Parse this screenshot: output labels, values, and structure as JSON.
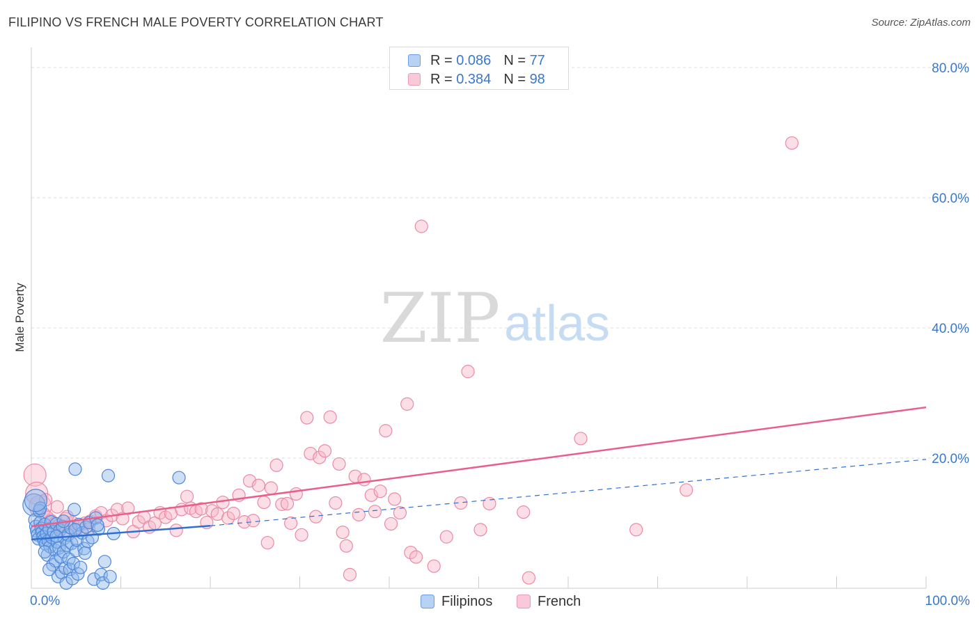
{
  "title": "FILIPINO VS FRENCH MALE POVERTY CORRELATION CHART",
  "source": "Source: ZipAtlas.com",
  "watermark": {
    "zip": "ZIP",
    "atlas": "atlas"
  },
  "legend": [
    {
      "r_label": "R =",
      "r_value": "0.086",
      "n_label": "N =",
      "n_value": "77"
    },
    {
      "r_label": "R =",
      "r_value": "0.384",
      "n_label": "N =",
      "n_value": "98"
    }
  ],
  "colors": {
    "filipinos_fill": "#8fb8ee",
    "filipinos_stroke": "#4f86d6",
    "filipinos_line": "#2f6fd0",
    "french_fill": "#f7b6c8",
    "french_stroke": "#ea8aa7",
    "french_line": "#e8608a",
    "axis_text": "#3a78c9",
    "grid": "#dddddd"
  },
  "chart_data": {
    "type": "scatter",
    "title": "FILIPINO VS FRENCH MALE POVERTY CORRELATION CHART",
    "xlabel": "",
    "ylabel": "Male Poverty",
    "xlim": [
      0,
      100
    ],
    "ylim": [
      0,
      80
    ],
    "x_tick_labels": [
      "0.0%",
      "100.0%"
    ],
    "y_ticks": [
      20,
      40,
      60,
      80
    ],
    "y_tick_labels": [
      "20.0%",
      "40.0%",
      "60.0%",
      "80.0%"
    ],
    "grid": true,
    "legend_position": "top-center",
    "series": [
      {
        "name": "Filipinos",
        "r": 0.086,
        "n": 77,
        "trend": {
          "x": [
            0,
            20
          ],
          "y": [
            7.5,
            9.6
          ],
          "dashed_to": [
            100,
            19.8
          ]
        },
        "points": [
          [
            0.3,
            12.8
          ],
          [
            0.4,
            10.5
          ],
          [
            0.5,
            9.5
          ],
          [
            0.6,
            8.8
          ],
          [
            0.7,
            8.2
          ],
          [
            0.8,
            7.6
          ],
          [
            0.9,
            11.9
          ],
          [
            1.0,
            10.1
          ],
          [
            1.1,
            9.2
          ],
          [
            1.2,
            8.6
          ],
          [
            1.3,
            7.9
          ],
          [
            1.4,
            7.4
          ],
          [
            1.5,
            9.8
          ],
          [
            1.6,
            6.8
          ],
          [
            1.7,
            8.4
          ],
          [
            1.8,
            5.1
          ],
          [
            1.9,
            7.3
          ],
          [
            2.0,
            9.1
          ],
          [
            2.1,
            6.4
          ],
          [
            2.2,
            10.2
          ],
          [
            2.3,
            7.8
          ],
          [
            2.4,
            3.6
          ],
          [
            2.5,
            8.7
          ],
          [
            2.6,
            5.9
          ],
          [
            2.7,
            4.2
          ],
          [
            2.8,
            9.9
          ],
          [
            2.9,
            7.1
          ],
          [
            3.0,
            1.8
          ],
          [
            3.1,
            6.2
          ],
          [
            3.2,
            8.9
          ],
          [
            3.3,
            4.8
          ],
          [
            3.4,
            2.4
          ],
          [
            3.5,
            9.5
          ],
          [
            3.6,
            5.6
          ],
          [
            3.7,
            7.7
          ],
          [
            3.8,
            3.1
          ],
          [
            3.9,
            0.8
          ],
          [
            4.0,
            6.6
          ],
          [
            4.1,
            8.2
          ],
          [
            4.2,
            4.5
          ],
          [
            4.3,
            2.9
          ],
          [
            4.4,
            9.3
          ],
          [
            4.5,
            6.9
          ],
          [
            4.6,
            1.5
          ],
          [
            4.7,
            3.8
          ],
          [
            4.8,
            12.1
          ],
          [
            4.9,
            18.3
          ],
          [
            5.0,
            5.8
          ],
          [
            5.1,
            7.4
          ],
          [
            5.2,
            2.2
          ],
          [
            5.3,
            9.8
          ],
          [
            5.5,
            3.2
          ],
          [
            5.7,
            8.5
          ],
          [
            5.9,
            6.1
          ],
          [
            6.1,
            9.4
          ],
          [
            6.3,
            7.2
          ],
          [
            6.5,
            10.1
          ],
          [
            7.0,
            1.4
          ],
          [
            7.2,
            10.8
          ],
          [
            7.5,
            9.1
          ],
          [
            7.8,
            2.1
          ],
          [
            8.0,
            0.8
          ],
          [
            8.2,
            4.1
          ],
          [
            8.6,
            17.3
          ],
          [
            8.8,
            1.8
          ],
          [
            9.2,
            8.4
          ],
          [
            16.5,
            17.0
          ],
          [
            2.0,
            2.9
          ],
          [
            1.5,
            5.6
          ],
          [
            6.8,
            7.8
          ],
          [
            3.6,
            10.3
          ],
          [
            1.0,
            12.3
          ],
          [
            0.5,
            13.5
          ],
          [
            2.8,
            8.0
          ],
          [
            4.9,
            9.0
          ],
          [
            6.0,
            5.4
          ],
          [
            7.4,
            9.7
          ]
        ]
      },
      {
        "name": "French",
        "r": 0.384,
        "n": 98,
        "trend": {
          "x": [
            0,
            100
          ],
          "y": [
            9.5,
            27.8
          ]
        },
        "points": [
          [
            0.4,
            17.4
          ],
          [
            0.6,
            14.6
          ],
          [
            1.0,
            12.6
          ],
          [
            1.4,
            11.4
          ],
          [
            1.8,
            10.9
          ],
          [
            2.2,
            10.4
          ],
          [
            2.6,
            10.0
          ],
          [
            3.0,
            9.6
          ],
          [
            3.4,
            9.2
          ],
          [
            3.8,
            10.7
          ],
          [
            4.2,
            9.4
          ],
          [
            4.6,
            10.1
          ],
          [
            5.0,
            8.8
          ],
          [
            5.4,
            9.6
          ],
          [
            6.0,
            10.0
          ],
          [
            6.6,
            10.3
          ],
          [
            7.2,
            11.1
          ],
          [
            7.8,
            11.6
          ],
          [
            8.4,
            10.4
          ],
          [
            9.0,
            11.2
          ],
          [
            9.6,
            12.1
          ],
          [
            10.2,
            10.7
          ],
          [
            10.8,
            12.3
          ],
          [
            11.4,
            8.7
          ],
          [
            12.0,
            10.2
          ],
          [
            12.6,
            10.9
          ],
          [
            13.2,
            9.4
          ],
          [
            13.8,
            10.0
          ],
          [
            14.4,
            11.6
          ],
          [
            15.0,
            10.9
          ],
          [
            15.6,
            11.5
          ],
          [
            16.2,
            8.9
          ],
          [
            16.8,
            12.1
          ],
          [
            17.4,
            14.1
          ],
          [
            17.8,
            12.3
          ],
          [
            18.4,
            11.8
          ],
          [
            19.0,
            12.2
          ],
          [
            19.6,
            10.1
          ],
          [
            20.2,
            11.9
          ],
          [
            20.8,
            11.4
          ],
          [
            21.4,
            13.2
          ],
          [
            22.0,
            10.8
          ],
          [
            22.6,
            11.5
          ],
          [
            23.2,
            14.3
          ],
          [
            23.8,
            10.2
          ],
          [
            24.4,
            16.5
          ],
          [
            24.8,
            10.4
          ],
          [
            25.4,
            15.8
          ],
          [
            26.0,
            13.2
          ],
          [
            26.4,
            7.0
          ],
          [
            26.8,
            15.4
          ],
          [
            27.4,
            18.9
          ],
          [
            28.0,
            12.9
          ],
          [
            28.6,
            13.0
          ],
          [
            29.0,
            10.0
          ],
          [
            29.6,
            14.5
          ],
          [
            30.2,
            8.2
          ],
          [
            30.8,
            26.2
          ],
          [
            31.2,
            20.7
          ],
          [
            31.8,
            11.0
          ],
          [
            32.2,
            20.1
          ],
          [
            32.8,
            21.1
          ],
          [
            33.4,
            26.3
          ],
          [
            34.0,
            13.1
          ],
          [
            34.4,
            19.1
          ],
          [
            34.8,
            8.6
          ],
          [
            35.2,
            6.5
          ],
          [
            35.6,
            2.1
          ],
          [
            36.2,
            17.2
          ],
          [
            36.6,
            11.3
          ],
          [
            37.2,
            16.7
          ],
          [
            38.0,
            14.3
          ],
          [
            38.4,
            11.8
          ],
          [
            39.0,
            14.9
          ],
          [
            39.6,
            24.2
          ],
          [
            40.2,
            9.9
          ],
          [
            40.6,
            13.7
          ],
          [
            41.2,
            11.6
          ],
          [
            42.0,
            28.3
          ],
          [
            42.4,
            5.5
          ],
          [
            43.0,
            4.8
          ],
          [
            43.6,
            55.6
          ],
          [
            45.0,
            3.4
          ],
          [
            46.4,
            7.9
          ],
          [
            48.0,
            13.1
          ],
          [
            48.8,
            33.3
          ],
          [
            50.2,
            9.0
          ],
          [
            51.2,
            13.0
          ],
          [
            55.0,
            11.7
          ],
          [
            55.6,
            1.6
          ],
          [
            61.4,
            23.0
          ],
          [
            67.6,
            9.0
          ],
          [
            73.2,
            15.1
          ],
          [
            85.0,
            68.4
          ],
          [
            1.6,
            13.6
          ],
          [
            2.9,
            12.5
          ],
          [
            6.4,
            9.1
          ],
          [
            4.0,
            11.0
          ]
        ]
      }
    ]
  }
}
